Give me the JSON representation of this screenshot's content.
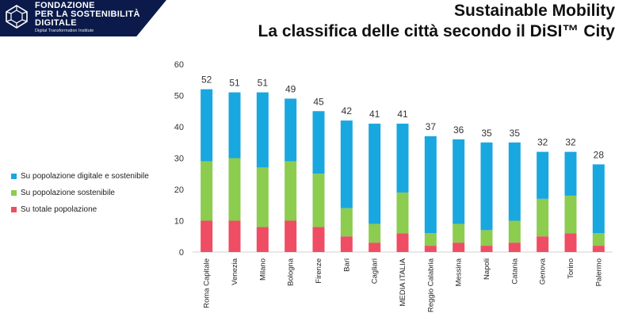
{
  "header": {
    "logo_line1": "Fondazione",
    "logo_line2": "per la sostenibilità",
    "logo_line3": "digitale",
    "logo_sub": "Digital Transformation Institute",
    "title_line1": "Sustainable Mobility",
    "title_line2": "La classifica delle città secondo il DiSI™ City"
  },
  "colors": {
    "digitale_sostenibile": "#19a7df",
    "sostenibile": "#8ccc4f",
    "totale": "#ef4d64",
    "logo_bg": "#0b1a4a"
  },
  "chart_data": {
    "type": "bar",
    "stacked": true,
    "categories": [
      "Roma Capitale",
      "Venezia",
      "Milano",
      "Bologna",
      "Firenze",
      "Bari",
      "Cagliari",
      "MEDIA ITALIA",
      "Reggio Calabria",
      "Messina",
      "Napoli",
      "Catania",
      "Genova",
      "Torino",
      "Palermo"
    ],
    "series": [
      {
        "name": "Su totale popolazione",
        "values": [
          10,
          10,
          8,
          10,
          8,
          5,
          3,
          6,
          2,
          3,
          2,
          3,
          5,
          6,
          2
        ]
      },
      {
        "name": "Su popolazione sostenibile",
        "values": [
          19,
          20,
          19,
          19,
          17,
          9,
          6,
          13,
          4,
          6,
          5,
          7,
          12,
          12,
          4
        ]
      },
      {
        "name": "Su popolazione digitale e sostenibile",
        "values": [
          23,
          21,
          24,
          20,
          20,
          28,
          32,
          22,
          31,
          27,
          28,
          25,
          15,
          14,
          22
        ]
      }
    ],
    "totals": [
      52,
      51,
      51,
      49,
      45,
      42,
      41,
      41,
      37,
      36,
      35,
      35,
      32,
      32,
      28
    ],
    "ylim": [
      0,
      60
    ],
    "yticks": [
      0,
      10,
      20,
      30,
      40,
      50,
      60
    ],
    "legend_position": "left",
    "legend": [
      "Su popolazione digitale e sostenibile",
      "Su popolazione sostenibile",
      "Su totale popolazione"
    ],
    "grid": false
  }
}
